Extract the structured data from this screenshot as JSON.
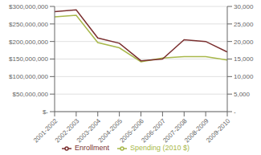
{
  "chart_data": {
    "type": "line",
    "categories": [
      "2001-2002",
      "2002-2003",
      "2003-2004",
      "2004-2005",
      "2005-2006",
      "2006-2007",
      "2007-2008",
      "2008-2009",
      "2009-2010"
    ],
    "series": [
      {
        "name": "Spending (2010 $)",
        "color": "#a8b84b",
        "values": [
          270000000,
          275000000,
          197000000,
          182000000,
          142000000,
          153000000,
          157000000,
          157000000,
          147000000
        ]
      },
      {
        "name": "Enrollment",
        "color": "#7b3030",
        "axis": "y2",
        "values": [
          28500,
          29000,
          21000,
          19500,
          14500,
          15000,
          20500,
          20000,
          17000
        ]
      }
    ],
    "ylim": [
      0,
      300000000
    ],
    "yticks": [
      {
        "value": 0,
        "label": "$-"
      },
      {
        "value": 50000000,
        "label": "$50,000,000"
      },
      {
        "value": 100000000,
        "label": "$100,000,000"
      },
      {
        "value": 150000000,
        "label": "$150,000,000"
      },
      {
        "value": 200000000,
        "label": "$200,000,000"
      },
      {
        "value": 250000000,
        "label": "$250,000,000"
      },
      {
        "value": 300000000,
        "label": "$300,000,000"
      }
    ],
    "y2lim": [
      0,
      30000
    ],
    "y2ticks": [
      {
        "value": 0,
        "label": "-"
      },
      {
        "value": 5000,
        "label": "5,000"
      },
      {
        "value": 10000,
        "label": "10,000"
      },
      {
        "value": 15000,
        "label": "15,000"
      },
      {
        "value": 20000,
        "label": "20,000"
      },
      {
        "value": 25000,
        "label": "25,000"
      },
      {
        "value": 30000,
        "label": "30,000"
      }
    ],
    "grid": true,
    "legend": "bottom"
  }
}
